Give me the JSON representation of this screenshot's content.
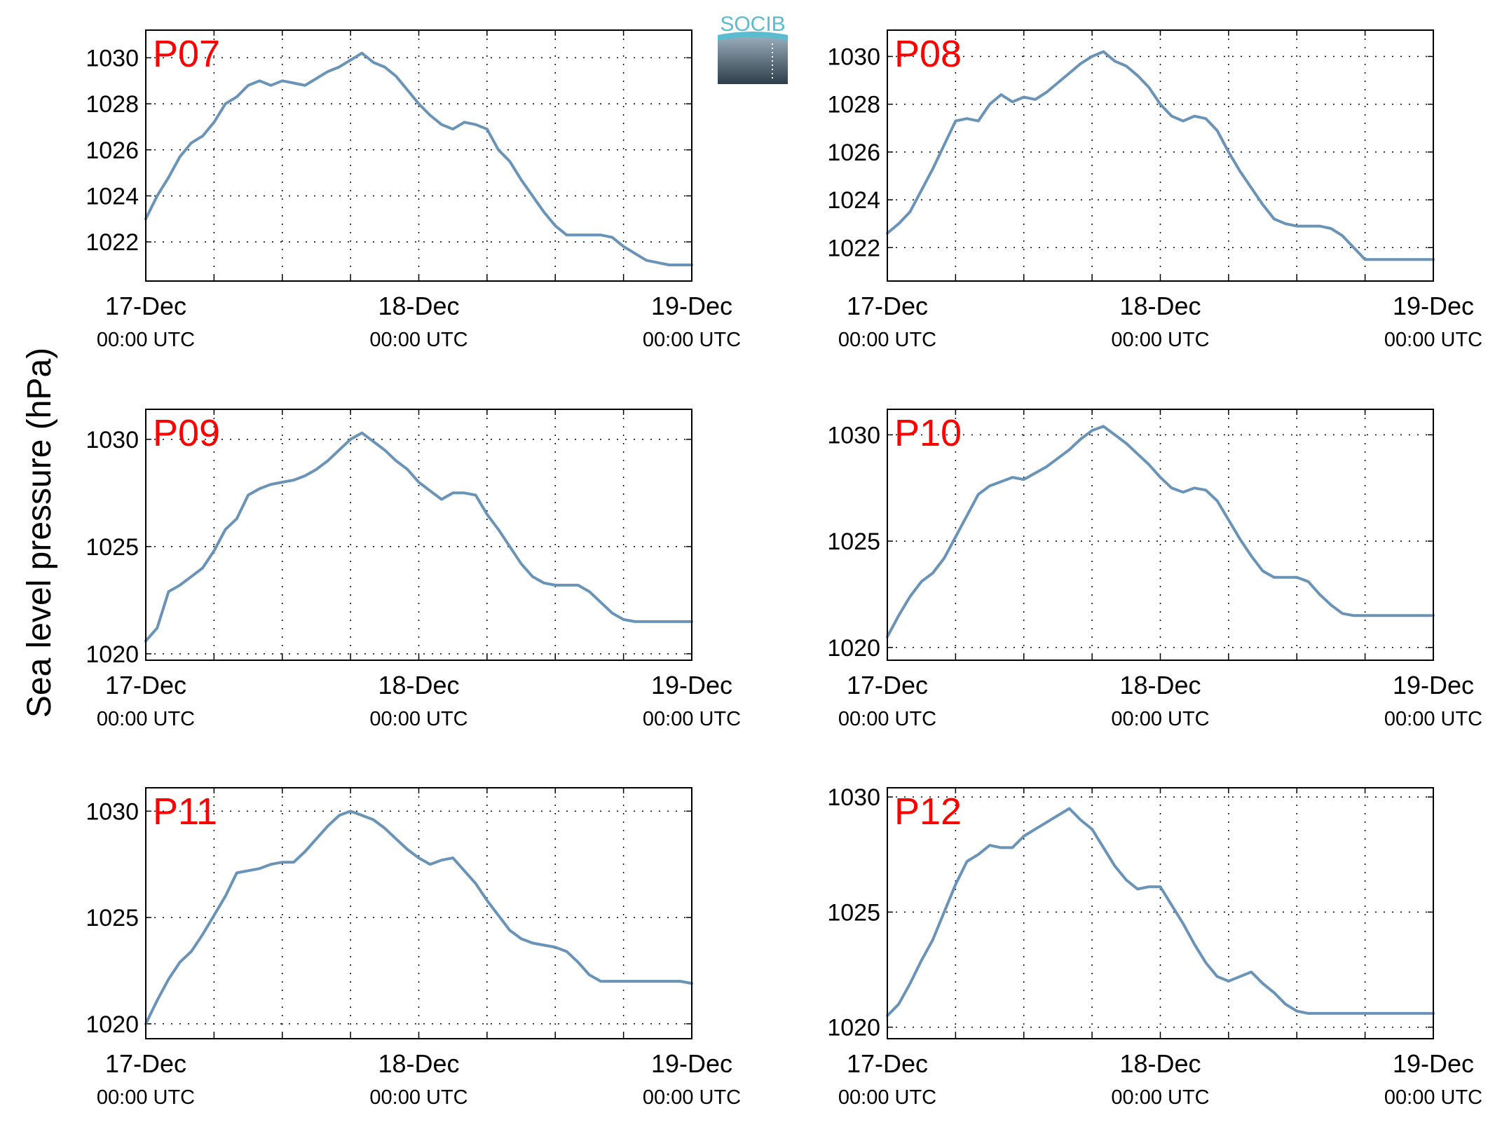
{
  "figure": {
    "ylabel": "Sea level pressure (hPa)",
    "logo_text": "SOCIB",
    "colors": {
      "line": "#6a93b8",
      "panel_label": "#ff0000",
      "logo_accent": "#5bbcd0",
      "logo_dark": "#2e3d49"
    }
  },
  "chart_data": [
    {
      "type": "line",
      "panel_label": "P07",
      "x_ticks": [
        {
          "day": "17-Dec",
          "time": "00:00 UTC",
          "hours": 0
        },
        {
          "day": "18-Dec",
          "time": "00:00 UTC",
          "hours": 24
        },
        {
          "day": "19-Dec",
          "time": "00:00 UTC",
          "hours": 48
        }
      ],
      "xlim": [
        0,
        48
      ],
      "ylim": [
        1020.3,
        1031.2
      ],
      "y_ticks": [
        1022,
        1024,
        1026,
        1028,
        1030
      ],
      "grid": true,
      "series": [
        {
          "x": [
            0,
            1,
            2,
            3,
            4,
            5,
            6,
            7,
            8,
            9,
            10,
            11,
            12,
            13,
            14,
            15,
            16,
            17,
            18,
            19,
            20,
            21,
            22,
            23,
            24,
            25,
            26,
            27,
            28,
            29,
            30,
            31,
            32,
            33,
            34,
            35,
            36,
            37,
            38,
            39,
            40,
            41,
            42,
            43,
            44,
            45,
            46,
            47,
            48
          ],
          "y": [
            1023.0,
            1024.0,
            1024.8,
            1025.7,
            1026.3,
            1026.6,
            1027.2,
            1028.0,
            1028.3,
            1028.8,
            1029.0,
            1028.8,
            1029.0,
            1028.9,
            1028.8,
            1029.1,
            1029.4,
            1029.6,
            1029.9,
            1030.2,
            1029.8,
            1029.6,
            1029.2,
            1028.6,
            1028.0,
            1027.5,
            1027.1,
            1026.9,
            1027.2,
            1027.1,
            1026.9,
            1026.0,
            1025.5,
            1024.7,
            1024.0,
            1023.3,
            1022.7,
            1022.3,
            1022.3,
            1022.3,
            1022.3,
            1022.2,
            1021.8,
            1021.5,
            1021.2,
            1021.1,
            1021.0,
            1021.0,
            1021.0
          ]
        }
      ]
    },
    {
      "type": "line",
      "panel_label": "P08",
      "x_ticks": [
        {
          "day": "17-Dec",
          "time": "00:00 UTC",
          "hours": 0
        },
        {
          "day": "18-Dec",
          "time": "00:00 UTC",
          "hours": 24
        },
        {
          "day": "19-Dec",
          "time": "00:00 UTC",
          "hours": 48
        }
      ],
      "xlim": [
        0,
        48
      ],
      "ylim": [
        1020.6,
        1031.1
      ],
      "y_ticks": [
        1022,
        1024,
        1026,
        1028,
        1030
      ],
      "grid": true,
      "series": [
        {
          "x": [
            0,
            1,
            2,
            3,
            4,
            5,
            6,
            7,
            8,
            9,
            10,
            11,
            12,
            13,
            14,
            15,
            16,
            17,
            18,
            19,
            20,
            21,
            22,
            23,
            24,
            25,
            26,
            27,
            28,
            29,
            30,
            31,
            32,
            33,
            34,
            35,
            36,
            37,
            38,
            39,
            40,
            41,
            42,
            43,
            44,
            45,
            46,
            47,
            48
          ],
          "y": [
            1022.6,
            1023.0,
            1023.5,
            1024.4,
            1025.3,
            1026.3,
            1027.3,
            1027.4,
            1027.3,
            1028.0,
            1028.4,
            1028.1,
            1028.3,
            1028.2,
            1028.5,
            1028.9,
            1029.3,
            1029.7,
            1030.0,
            1030.2,
            1029.8,
            1029.6,
            1029.2,
            1028.7,
            1028.0,
            1027.5,
            1027.3,
            1027.5,
            1027.4,
            1026.9,
            1026.0,
            1025.2,
            1024.5,
            1023.8,
            1023.2,
            1023.0,
            1022.9,
            1022.9,
            1022.9,
            1022.8,
            1022.5,
            1022.0,
            1021.5,
            1021.5,
            1021.5,
            1021.5,
            1021.5,
            1021.5,
            1021.5
          ]
        }
      ]
    },
    {
      "type": "line",
      "panel_label": "P09",
      "x_ticks": [
        {
          "day": "17-Dec",
          "time": "00:00 UTC",
          "hours": 0
        },
        {
          "day": "18-Dec",
          "time": "00:00 UTC",
          "hours": 24
        },
        {
          "day": "19-Dec",
          "time": "00:00 UTC",
          "hours": 48
        }
      ],
      "xlim": [
        0,
        48
      ],
      "ylim": [
        1019.7,
        1031.4
      ],
      "y_ticks": [
        1020,
        1025,
        1030
      ],
      "grid": true,
      "series": [
        {
          "x": [
            0,
            1,
            2,
            3,
            4,
            5,
            6,
            7,
            8,
            9,
            10,
            11,
            12,
            13,
            14,
            15,
            16,
            17,
            18,
            19,
            20,
            21,
            22,
            23,
            24,
            25,
            26,
            27,
            28,
            29,
            30,
            31,
            32,
            33,
            34,
            35,
            36,
            37,
            38,
            39,
            40,
            41,
            42,
            43,
            44,
            45,
            46,
            47,
            48
          ],
          "y": [
            1020.6,
            1021.2,
            1022.9,
            1023.2,
            1023.6,
            1024.0,
            1024.8,
            1025.8,
            1026.3,
            1027.4,
            1027.7,
            1027.9,
            1028.0,
            1028.1,
            1028.3,
            1028.6,
            1029.0,
            1029.5,
            1030.0,
            1030.3,
            1029.9,
            1029.5,
            1029.0,
            1028.6,
            1028.0,
            1027.6,
            1027.2,
            1027.5,
            1027.5,
            1027.4,
            1026.5,
            1025.8,
            1025.0,
            1024.2,
            1023.6,
            1023.3,
            1023.2,
            1023.2,
            1023.2,
            1022.9,
            1022.4,
            1021.9,
            1021.6,
            1021.5,
            1021.5,
            1021.5,
            1021.5,
            1021.5,
            1021.5
          ]
        }
      ]
    },
    {
      "type": "line",
      "panel_label": "P10",
      "x_ticks": [
        {
          "day": "17-Dec",
          "time": "00:00 UTC",
          "hours": 0
        },
        {
          "day": "18-Dec",
          "time": "00:00 UTC",
          "hours": 24
        },
        {
          "day": "19-Dec",
          "time": "00:00 UTC",
          "hours": 48
        }
      ],
      "xlim": [
        0,
        48
      ],
      "ylim": [
        1019.4,
        1031.2
      ],
      "y_ticks": [
        1020,
        1025,
        1030
      ],
      "grid": true,
      "series": [
        {
          "x": [
            0,
            1,
            2,
            3,
            4,
            5,
            6,
            7,
            8,
            9,
            10,
            11,
            12,
            13,
            14,
            15,
            16,
            17,
            18,
            19,
            20,
            21,
            22,
            23,
            24,
            25,
            26,
            27,
            28,
            29,
            30,
            31,
            32,
            33,
            34,
            35,
            36,
            37,
            38,
            39,
            40,
            41,
            42,
            43,
            44,
            45,
            46,
            47,
            48
          ],
          "y": [
            1020.5,
            1021.5,
            1022.4,
            1023.1,
            1023.5,
            1024.2,
            1025.2,
            1026.2,
            1027.2,
            1027.6,
            1027.8,
            1028.0,
            1027.9,
            1028.2,
            1028.5,
            1028.9,
            1029.3,
            1029.8,
            1030.2,
            1030.4,
            1030.0,
            1029.6,
            1029.1,
            1028.6,
            1028.0,
            1027.5,
            1027.3,
            1027.5,
            1027.4,
            1026.9,
            1026.0,
            1025.1,
            1024.3,
            1023.6,
            1023.3,
            1023.3,
            1023.3,
            1023.1,
            1022.5,
            1022.0,
            1021.6,
            1021.5,
            1021.5,
            1021.5,
            1021.5,
            1021.5,
            1021.5,
            1021.5,
            1021.5
          ]
        }
      ]
    },
    {
      "type": "line",
      "panel_label": "P11",
      "x_ticks": [
        {
          "day": "17-Dec",
          "time": "00:00 UTC",
          "hours": 0
        },
        {
          "day": "18-Dec",
          "time": "00:00 UTC",
          "hours": 24
        },
        {
          "day": "19-Dec",
          "time": "00:00 UTC",
          "hours": 48
        }
      ],
      "xlim": [
        0,
        48
      ],
      "ylim": [
        1019.3,
        1031.1
      ],
      "y_ticks": [
        1020,
        1025,
        1030
      ],
      "grid": true,
      "series": [
        {
          "x": [
            0,
            1,
            2,
            3,
            4,
            5,
            6,
            7,
            8,
            9,
            10,
            11,
            12,
            13,
            14,
            15,
            16,
            17,
            18,
            19,
            20,
            21,
            22,
            23,
            24,
            25,
            26,
            27,
            28,
            29,
            30,
            31,
            32,
            33,
            34,
            35,
            36,
            37,
            38,
            39,
            40,
            41,
            42,
            43,
            44,
            45,
            46,
            47,
            48
          ],
          "y": [
            1020.0,
            1021.1,
            1022.1,
            1022.9,
            1023.4,
            1024.2,
            1025.1,
            1026.0,
            1027.1,
            1027.2,
            1027.3,
            1027.5,
            1027.6,
            1027.6,
            1028.1,
            1028.7,
            1029.3,
            1029.8,
            1030.0,
            1029.8,
            1029.6,
            1029.2,
            1028.7,
            1028.2,
            1027.8,
            1027.5,
            1027.7,
            1027.8,
            1027.2,
            1026.6,
            1025.8,
            1025.1,
            1024.4,
            1024.0,
            1023.8,
            1023.7,
            1023.6,
            1023.4,
            1022.9,
            1022.3,
            1022.0,
            1022.0,
            1022.0,
            1022.0,
            1022.0,
            1022.0,
            1022.0,
            1022.0,
            1021.9
          ]
        }
      ]
    },
    {
      "type": "line",
      "panel_label": "P12",
      "x_ticks": [
        {
          "day": "17-Dec",
          "time": "00:00 UTC",
          "hours": 0
        },
        {
          "day": "18-Dec",
          "time": "00:00 UTC",
          "hours": 24
        },
        {
          "day": "19-Dec",
          "time": "00:00 UTC",
          "hours": 48
        }
      ],
      "xlim": [
        0,
        48
      ],
      "ylim": [
        1019.5,
        1030.4
      ],
      "y_ticks": [
        1020,
        1025,
        1030
      ],
      "grid": true,
      "series": [
        {
          "x": [
            0,
            1,
            2,
            3,
            4,
            5,
            6,
            7,
            8,
            9,
            10,
            11,
            12,
            13,
            14,
            15,
            16,
            17,
            18,
            19,
            20,
            21,
            22,
            23,
            24,
            25,
            26,
            27,
            28,
            29,
            30,
            31,
            32,
            33,
            34,
            35,
            36,
            37,
            38,
            39,
            40,
            41,
            42,
            43,
            44,
            45,
            46,
            47,
            48
          ],
          "y": [
            1020.5,
            1021.0,
            1021.9,
            1022.9,
            1023.8,
            1025.0,
            1026.2,
            1027.2,
            1027.5,
            1027.9,
            1027.8,
            1027.8,
            1028.3,
            1028.6,
            1028.9,
            1029.2,
            1029.5,
            1029.0,
            1028.6,
            1027.8,
            1027.0,
            1026.4,
            1026.0,
            1026.1,
            1026.1,
            1025.3,
            1024.5,
            1023.6,
            1022.8,
            1022.2,
            1022.0,
            1022.2,
            1022.4,
            1021.9,
            1021.5,
            1021.0,
            1020.7,
            1020.6,
            1020.6,
            1020.6,
            1020.6,
            1020.6,
            1020.6,
            1020.6,
            1020.6,
            1020.6,
            1020.6,
            1020.6,
            1020.6
          ]
        }
      ]
    }
  ]
}
